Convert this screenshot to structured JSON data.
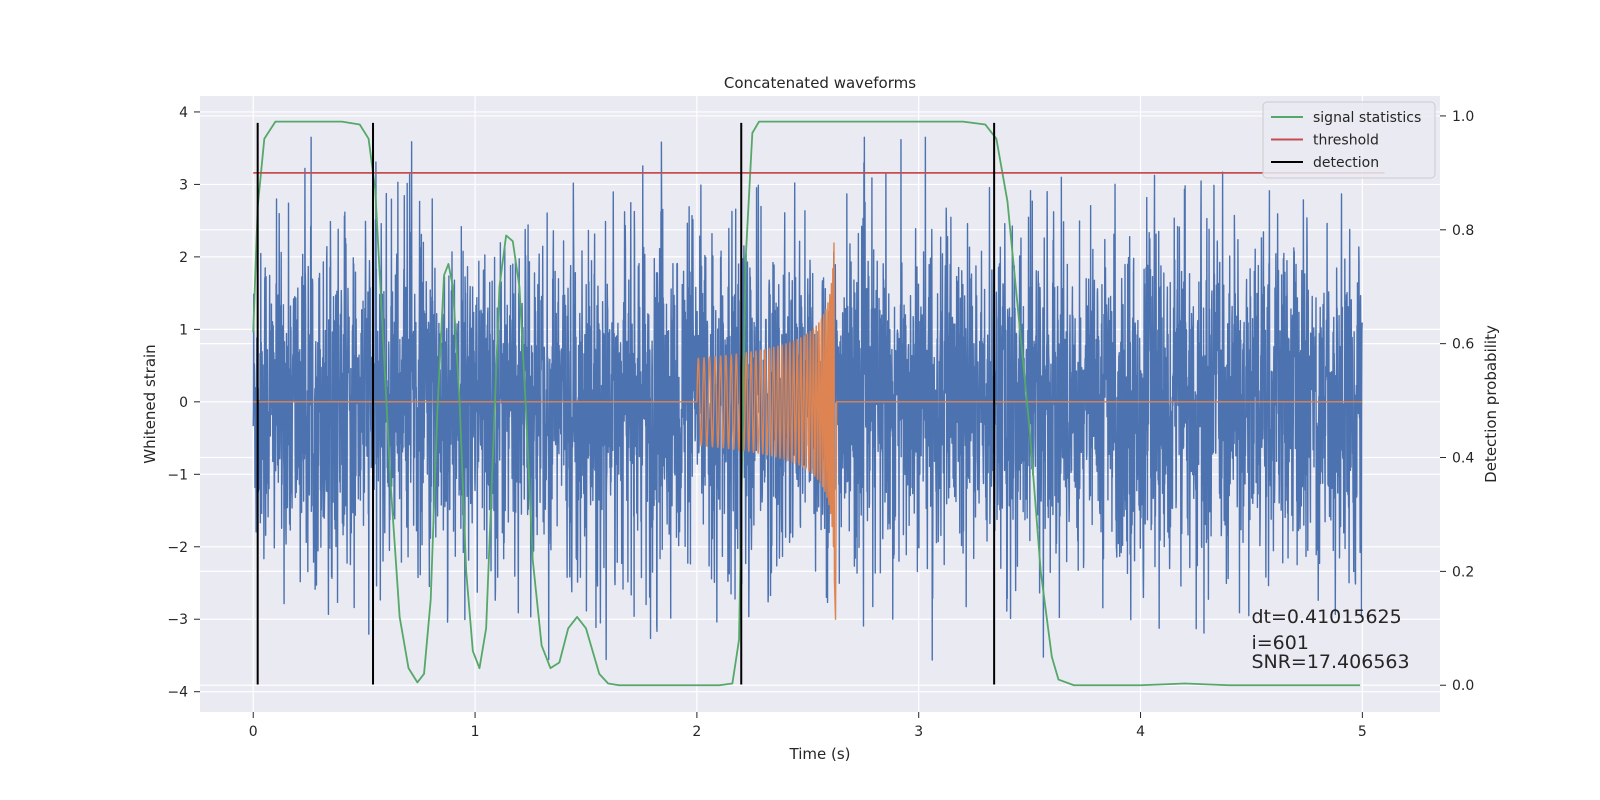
{
  "chart_data": {
    "type": "line",
    "title": "Concatenated waveforms",
    "xlabel": "Time (s)",
    "ylabel": "Whitened strain",
    "ylabel_right": "Detection probability",
    "xlim": [
      -0.24,
      5.35
    ],
    "ylim": [
      -4.28,
      4.22
    ],
    "ylim_right": [
      -0.047,
      1.035
    ],
    "x_ticks": [
      0,
      1,
      2,
      3,
      4,
      5
    ],
    "x_tick_labels": [
      "0",
      "1",
      "2",
      "3",
      "4",
      "5"
    ],
    "y_ticks": [
      -4,
      -3,
      -2,
      -1,
      0,
      1,
      2,
      3,
      4
    ],
    "y_tick_labels": [
      "−4",
      "−3",
      "−2",
      "−1",
      "0",
      "1",
      "2",
      "3",
      "4"
    ],
    "y2_ticks": [
      0.0,
      0.2,
      0.4,
      0.6,
      0.8,
      1.0
    ],
    "y2_tick_labels": [
      "0.0",
      "0.2",
      "0.4",
      "0.6",
      "0.8",
      "1.0"
    ],
    "grid": true,
    "legend_position": "top-right",
    "colors": {
      "noise": "#4c72b0",
      "injection": "#dd8452",
      "signal_statistics": "#55a868",
      "threshold": "#c44e52",
      "detection": "#000000",
      "plot_background": "#eaeaf2",
      "grid": "#ffffff"
    },
    "series": [
      {
        "name": "",
        "key": "noise",
        "axis": "left",
        "style": "dense-noise",
        "x_range": [
          0.0,
          5.0
        ],
        "typical_amplitude": 1.5,
        "max": 3.65,
        "min": -3.9
      },
      {
        "name": "",
        "key": "injection",
        "axis": "left",
        "style": "chirp",
        "x_range": [
          0.0,
          5.0
        ],
        "chirp_start": 2.0,
        "merger": 2.62,
        "start_amplitude": 0.6,
        "peak_max": 2.3,
        "peak_min": -3.0
      },
      {
        "name": "signal statistics",
        "key": "signal_statistics",
        "axis": "right",
        "x": [
          0.0,
          0.02,
          0.05,
          0.1,
          0.2,
          0.3,
          0.4,
          0.48,
          0.52,
          0.55,
          0.58,
          0.62,
          0.66,
          0.7,
          0.74,
          0.77,
          0.8,
          0.83,
          0.86,
          0.88,
          0.9,
          0.93,
          0.96,
          0.99,
          1.02,
          1.05,
          1.08,
          1.11,
          1.14,
          1.17,
          1.2,
          1.23,
          1.26,
          1.3,
          1.34,
          1.38,
          1.42,
          1.46,
          1.5,
          1.53,
          1.56,
          1.6,
          1.65,
          1.8,
          2.0,
          2.1,
          2.16,
          2.19,
          2.22,
          2.25,
          2.28,
          2.3,
          2.4,
          2.6,
          2.8,
          3.0,
          3.2,
          3.3,
          3.35,
          3.4,
          3.45,
          3.5,
          3.55,
          3.6,
          3.63,
          3.7,
          3.9,
          4.0,
          4.2,
          4.4,
          4.6,
          4.8,
          4.99
        ],
        "values": [
          0.62,
          0.84,
          0.96,
          0.99,
          0.99,
          0.99,
          0.99,
          0.985,
          0.96,
          0.87,
          0.65,
          0.35,
          0.12,
          0.03,
          0.005,
          0.02,
          0.15,
          0.48,
          0.72,
          0.74,
          0.7,
          0.5,
          0.2,
          0.06,
          0.03,
          0.1,
          0.4,
          0.7,
          0.79,
          0.78,
          0.7,
          0.48,
          0.22,
          0.07,
          0.03,
          0.04,
          0.1,
          0.12,
          0.1,
          0.06,
          0.02,
          0.003,
          0.0,
          0.0,
          0.0,
          0.0,
          0.003,
          0.08,
          0.75,
          0.97,
          0.99,
          0.99,
          0.99,
          0.99,
          0.99,
          0.99,
          0.99,
          0.985,
          0.96,
          0.85,
          0.65,
          0.45,
          0.2,
          0.05,
          0.01,
          0.0,
          0.0,
          0.0,
          0.003,
          0.0,
          0.0,
          0.0,
          0.0
        ]
      },
      {
        "name": "threshold",
        "key": "threshold",
        "axis": "right",
        "x": [
          0.0,
          5.1
        ],
        "values": [
          0.9,
          0.9
        ]
      }
    ],
    "detections": {
      "name": "detection",
      "x": [
        0.02,
        0.54,
        2.2,
        3.34
      ],
      "ymin": -3.9,
      "ymax": 3.85
    },
    "annotations": [
      {
        "text": "dt=0.41015625",
        "x": 4.5,
        "y": -3.05
      },
      {
        "text": " i=601",
        "x": 4.5,
        "y": -3.41
      },
      {
        "text": "SNR=17.406563",
        "x": 4.5,
        "y": -3.67
      }
    ]
  }
}
